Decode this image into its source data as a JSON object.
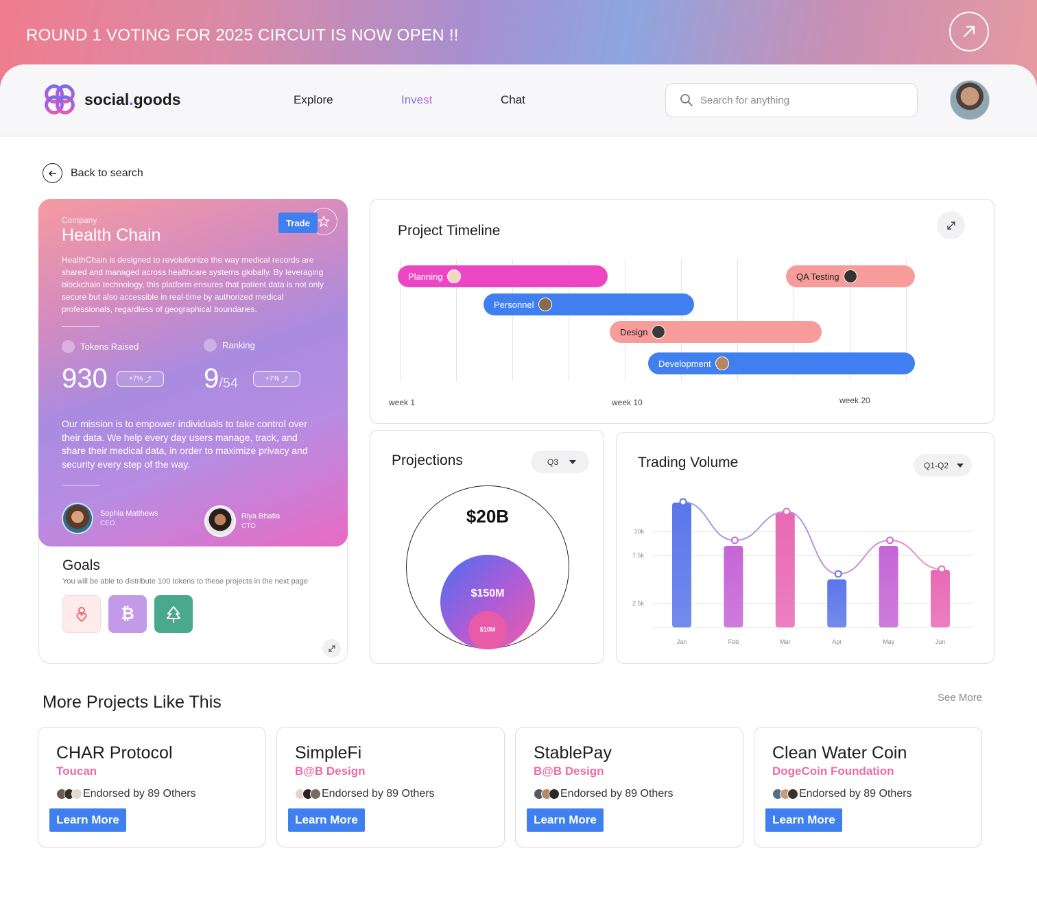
{
  "banner": {
    "text": "ROUND 1 VOTING FOR 2025 CIRCUIT IS NOW OPEN !!"
  },
  "brand": {
    "name_part1": "social",
    "dot": ".",
    "name_part2": "goods"
  },
  "nav": {
    "items": [
      {
        "label": "Explore"
      },
      {
        "label": "Invest",
        "active": true
      },
      {
        "label": "Chat"
      }
    ]
  },
  "search": {
    "placeholder": "Search for anything"
  },
  "back": {
    "label": "Back to search"
  },
  "company": {
    "caption": "Company",
    "name": "Health Chain",
    "trade_label": "Trade",
    "description": "HealthChain is designed to revolutionize the way medical records are shared and managed across healthcare systems globally. By leveraging blockchain technology, this platform ensures that patient data is not only secure but also accessible in real-time by authorized medical professionals, regardless of geographical boundaries.",
    "tokens_label": "Tokens Raised",
    "tokens_value": "930",
    "tokens_change": "+7%",
    "ranking_label": "Ranking",
    "ranking_value": "9",
    "ranking_total": "/54",
    "ranking_change": "+7%",
    "mission": "Our mission is to empower individuals to take control over their data. We help every day users manage, track, and share their medical data, in order to maximize privacy and security every step of the way.",
    "people": [
      {
        "name": "Sophia Matthews",
        "role": "CEO"
      },
      {
        "name": "Riya Bhatia",
        "role": "CTO"
      }
    ]
  },
  "goals": {
    "title": "Goals",
    "subtitle": "You will be able to distribute 100 tokens to these projects in the next page",
    "icons": [
      "heart-person-icon",
      "bitcoin-icon",
      "tree-icon"
    ]
  },
  "timeline": {
    "title": "Project Timeline",
    "week_labels": [
      "week 1",
      "week 10",
      "week 20"
    ],
    "tasks": [
      {
        "label": "Planning",
        "color": "#ec46c4"
      },
      {
        "label": "Personnel",
        "color": "#3f7ff0"
      },
      {
        "label": "Design",
        "color": "#f79b9b"
      },
      {
        "label": "Development",
        "color": "#3f7ff0"
      },
      {
        "label": "QA Testing",
        "color": "#f79b9b"
      }
    ]
  },
  "projections": {
    "title": "Projections",
    "period": "Q3",
    "values": [
      "$20B",
      "$150M",
      "$10M"
    ]
  },
  "chart_data": {
    "type": "bar",
    "title": "Trading Volume",
    "period": "Q1-Q2",
    "categories": [
      "Jan",
      "Feb",
      "Mar",
      "Apr",
      "May",
      "Jun"
    ],
    "values": [
      13000,
      8500,
      12000,
      5000,
      8500,
      6000
    ],
    "line_values": [
      13000,
      9000,
      12000,
      5500,
      9000,
      6000
    ],
    "yticks": [
      {
        "label": "10k",
        "value": 10000
      },
      {
        "label": "7.5k",
        "value": 7500
      },
      {
        "label": "2.5k",
        "value": 2500
      }
    ],
    "ylim": [
      0,
      15000
    ],
    "bar_colors": [
      "#5b76ea",
      "#c565d6",
      "#e869b4",
      "#5b76ea",
      "#c565d6",
      "#e869b4"
    ]
  },
  "more": {
    "title": "More Projects Like This",
    "see_more": "See More",
    "projects": [
      {
        "name": "CHAR Protocol",
        "org": "Toucan",
        "endorse": "Endorsed by 89 Others",
        "cta": "Learn More"
      },
      {
        "name": "SimpleFi",
        "org": "B@B Design",
        "endorse": "Endorsed by 89 Others",
        "cta": "Learn More"
      },
      {
        "name": "StablePay",
        "org": "B@B Design",
        "endorse": "Endorsed by 89 Others",
        "cta": "Learn More"
      },
      {
        "name": "Clean Water Coin",
        "org": "DogeCoin Foundation",
        "endorse": "Endorsed by 89 Others",
        "cta": "Learn More"
      }
    ]
  }
}
